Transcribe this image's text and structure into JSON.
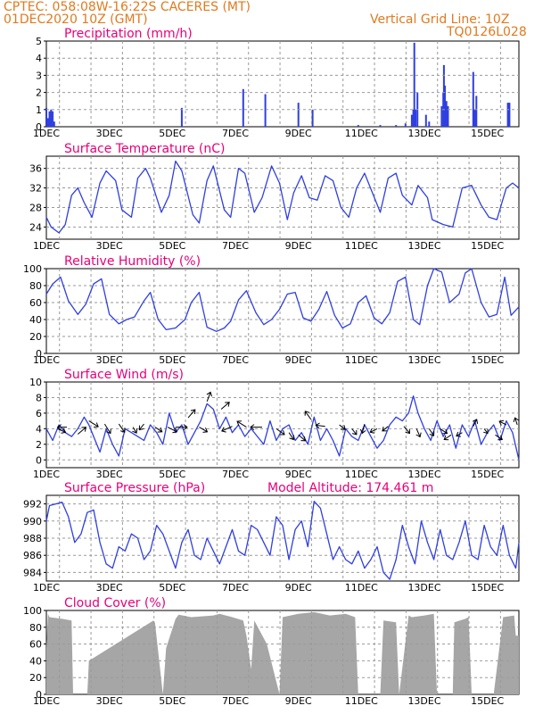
{
  "header": {
    "line1": "CPTEC:   058:08W-16:22S   CACERES (MT)",
    "line2": "01DEC2020 10Z (GMT)",
    "grid_note": "Vertical Grid Line: 10Z",
    "code": "TQ0126L028"
  },
  "colors": {
    "header": "#e07a1f",
    "panel_title": "#e8007a",
    "series": "#2f3fe0",
    "cloud": "#a6a6a6",
    "wind_arrow": "#000000",
    "grid": "#9a9a9a",
    "frame": "#000000"
  },
  "chart_data": [
    {
      "id": "precip",
      "type": "bar",
      "title": "Precipitation (mm/h)",
      "ylim": [
        0,
        5
      ],
      "yticks": [
        "0",
        "1",
        "2",
        "3",
        "4",
        "5"
      ],
      "xlim": [
        1,
        16
      ],
      "xticks": [
        "1DEC",
        "3DEC",
        "5DEC",
        "7DEC",
        "9DEC",
        "11DEC",
        "13DEC",
        "15DEC"
      ],
      "grid": true,
      "series": [
        {
          "x": [
            1.0,
            1.05,
            1.1,
            1.15,
            1.2,
            1.25,
            5.3,
            7.25,
            7.95,
            9.0,
            9.45,
            10.9,
            11.6,
            12.1,
            12.4,
            12.6,
            12.65,
            12.68,
            12.72,
            12.78,
            13.05,
            13.15,
            13.55,
            13.6,
            13.62,
            13.65,
            13.7,
            13.75,
            14.55,
            14.6,
            14.65,
            15.65,
            15.7
          ],
          "values": [
            1.1,
            0.5,
            0.9,
            1.0,
            0.9,
            0.3,
            1.1,
            2.2,
            1.9,
            1.4,
            1.0,
            0.1,
            0.1,
            0.1,
            0.2,
            0.7,
            1.0,
            4.9,
            1.0,
            2.0,
            0.7,
            0.3,
            1.2,
            2.0,
            3.6,
            2.4,
            1.5,
            1.2,
            3.2,
            1.0,
            1.8,
            1.4,
            1.4
          ]
        }
      ]
    },
    {
      "id": "temp",
      "type": "line",
      "title": "Surface Temperature (nC)",
      "ylim": [
        21.5,
        38.5
      ],
      "yticks": [
        "24",
        "28",
        "32",
        "36"
      ],
      "xlim": [
        1,
        16
      ],
      "xticks": [
        "1DEC",
        "3DEC",
        "5DEC",
        "7DEC",
        "9DEC",
        "11DEC",
        "13DEC",
        "15DEC"
      ],
      "grid": true,
      "series": [
        {
          "x": [
            1.0,
            1.15,
            1.4,
            1.6,
            1.8,
            2.0,
            2.2,
            2.45,
            2.7,
            2.9,
            3.2,
            3.4,
            3.7,
            3.9,
            4.15,
            4.3,
            4.65,
            4.9,
            5.1,
            5.3,
            5.65,
            5.85,
            6.1,
            6.3,
            6.65,
            6.85,
            7.1,
            7.3,
            7.6,
            7.85,
            8.15,
            8.4,
            8.65,
            8.85,
            9.1,
            9.35,
            9.6,
            9.85,
            10.1,
            10.35,
            10.6,
            10.85,
            11.1,
            11.35,
            11.6,
            11.85,
            12.1,
            12.3,
            12.6,
            12.8,
            13.1,
            13.25,
            13.6,
            13.9,
            14.2,
            14.5,
            14.8,
            15.05,
            15.3,
            15.6,
            15.8,
            16.0
          ],
          "values": [
            26.0,
            24.0,
            22.8,
            24.5,
            30.5,
            32.0,
            29.0,
            26.0,
            33.0,
            35.5,
            33.5,
            27.5,
            26.0,
            34.0,
            36.0,
            34.0,
            27.0,
            30.5,
            37.5,
            35.5,
            26.5,
            24.8,
            33.5,
            36.5,
            27.5,
            26.0,
            36.0,
            35.0,
            27.0,
            30.0,
            36.5,
            33.0,
            25.5,
            31.0,
            34.5,
            30.0,
            29.5,
            34.5,
            33.5,
            28.0,
            26.0,
            32.0,
            35.0,
            31.0,
            27.0,
            34.0,
            35.0,
            30.5,
            28.5,
            32.5,
            30.0,
            25.5,
            24.5,
            24.0,
            32.0,
            32.5,
            28.5,
            26.0,
            25.5,
            32.0,
            33.0,
            32.0
          ]
        }
      ]
    },
    {
      "id": "rh",
      "type": "line",
      "title": "Relative Humidity (%)",
      "ylim": [
        0,
        100
      ],
      "yticks": [
        "0",
        "20",
        "40",
        "60",
        "80",
        "100"
      ],
      "xlim": [
        1,
        16
      ],
      "xticks": [
        "1DEC",
        "3DEC",
        "5DEC",
        "7DEC",
        "9DEC",
        "11DEC",
        "13DEC",
        "15DEC"
      ],
      "grid": true,
      "series": [
        {
          "x": [
            1.0,
            1.2,
            1.45,
            1.7,
            2.0,
            2.25,
            2.5,
            2.75,
            3.0,
            3.3,
            3.55,
            3.8,
            4.1,
            4.3,
            4.55,
            4.8,
            5.1,
            5.4,
            5.6,
            5.85,
            6.1,
            6.4,
            6.65,
            6.85,
            7.1,
            7.35,
            7.65,
            7.9,
            8.15,
            8.4,
            8.65,
            8.9,
            9.15,
            9.4,
            9.65,
            9.9,
            10.15,
            10.4,
            10.65,
            10.9,
            11.15,
            11.4,
            11.65,
            11.9,
            12.15,
            12.4,
            12.65,
            12.85,
            13.1,
            13.3,
            13.55,
            13.8,
            14.1,
            14.3,
            14.5,
            14.8,
            15.05,
            15.3,
            15.55,
            15.75,
            16.0
          ],
          "values": [
            70,
            82,
            90,
            62,
            46,
            58,
            82,
            88,
            46,
            35,
            40,
            43,
            62,
            72,
            40,
            28,
            30,
            40,
            60,
            72,
            31,
            26,
            30,
            38,
            63,
            74,
            48,
            34,
            40,
            52,
            70,
            72,
            42,
            38,
            52,
            73,
            45,
            30,
            35,
            60,
            68,
            42,
            35,
            48,
            85,
            90,
            40,
            34,
            80,
            100,
            96,
            60,
            70,
            95,
            100,
            60,
            43,
            46,
            90,
            45,
            55
          ]
        }
      ]
    },
    {
      "id": "wind",
      "type": "line",
      "title": "Surface Wind (m/s)",
      "ylim": [
        -1,
        10
      ],
      "yticks": [
        "0",
        "2",
        "4",
        "6",
        "8",
        "10"
      ],
      "xlim": [
        1,
        16
      ],
      "xticks": [
        "1DEC",
        "3DEC",
        "5DEC",
        "7DEC",
        "9DEC",
        "11DEC",
        "13DEC",
        "15DEC"
      ],
      "grid": true,
      "series": [
        {
          "x": [
            1.0,
            1.2,
            1.4,
            1.6,
            1.8,
            2.0,
            2.2,
            2.35,
            2.5,
            2.7,
            2.9,
            3.1,
            3.3,
            3.5,
            3.7,
            3.9,
            4.1,
            4.3,
            4.5,
            4.7,
            4.9,
            5.1,
            5.3,
            5.5,
            5.7,
            5.9,
            6.1,
            6.3,
            6.5,
            6.7,
            6.9,
            7.1,
            7.3,
            7.5,
            7.7,
            7.9,
            8.1,
            8.3,
            8.5,
            8.7,
            8.9,
            9.1,
            9.3,
            9.5,
            9.7,
            9.9,
            10.1,
            10.3,
            10.5,
            10.7,
            10.9,
            11.1,
            11.3,
            11.5,
            11.7,
            11.9,
            12.1,
            12.3,
            12.5,
            12.65,
            12.8,
            13.0,
            13.2,
            13.4,
            13.6,
            13.8,
            14.0,
            14.2,
            14.4,
            14.6,
            14.8,
            15.0,
            15.2,
            15.4,
            15.6,
            15.8,
            16.0
          ],
          "values": [
            4.0,
            2.5,
            4.5,
            3.5,
            3.0,
            4.0,
            5.5,
            4.5,
            3.0,
            1.0,
            4.0,
            2.0,
            0.5,
            4.0,
            3.5,
            3.0,
            2.5,
            4.5,
            3.5,
            2.0,
            6.0,
            3.5,
            4.5,
            2.0,
            3.5,
            5.0,
            7.2,
            6.5,
            4.0,
            5.5,
            3.5,
            4.5,
            3.0,
            4.0,
            3.0,
            2.0,
            5.0,
            2.5,
            4.0,
            4.5,
            2.5,
            3.5,
            2.0,
            5.5,
            2.5,
            4.0,
            2.5,
            0.5,
            4.0,
            3.0,
            2.5,
            4.5,
            3.0,
            1.5,
            2.5,
            4.5,
            5.5,
            5.0,
            6.0,
            8.2,
            6.0,
            4.0,
            2.5,
            5.0,
            3.0,
            4.5,
            1.5,
            4.5,
            3.0,
            5.0,
            2.0,
            3.5,
            4.5,
            2.5,
            5.0,
            3.5,
            0.0
          ]
        }
      ],
      "arrows": {
        "x": [
          1.35,
          1.65,
          2.0,
          2.35,
          2.85,
          3.3,
          3.75,
          4.1,
          4.45,
          4.85,
          5.1,
          5.5,
          5.85,
          6.1,
          6.55,
          6.9,
          7.35,
          7.85,
          8.3,
          8.7,
          9.0,
          9.4,
          9.85,
          10.3,
          10.7,
          11.1,
          11.5,
          11.85,
          12.35,
          12.75,
          13.15,
          13.5,
          13.85,
          14.2,
          14.55,
          14.9,
          15.25,
          15.6,
          15.95
        ],
        "y": [
          4.0,
          4.2,
          3.3,
          5.0,
          4.6,
          4.6,
          4.2,
          4.6,
          4.2,
          4.2,
          4.2,
          5.4,
          4.2,
          7.5,
          6.5,
          4.3,
          4.2,
          4.2,
          4.0,
          3.5,
          3.2,
          5.2,
          4.3,
          4.5,
          4.0,
          4.6,
          4.0,
          4.3,
          4.3,
          4.0,
          4.0,
          4.0,
          3.2,
          3.5,
          4.3,
          4.0,
          3.2,
          4.5,
          4.5
        ],
        "u": [
          0.7,
          -0.8,
          0.7,
          0.8,
          0.5,
          0.5,
          0.3,
          -0.4,
          0.6,
          0.8,
          1.0,
          0.6,
          0.7,
          0.3,
          0.7,
          -0.9,
          -0.8,
          -1.0,
          0.7,
          0.4,
          0.6,
          -0.5,
          -0.8,
          0.5,
          0.4,
          -0.2,
          -0.6,
          -0.5,
          0.5,
          0.3,
          0.4,
          0.6,
          -0.6,
          -0.5,
          0.3,
          0.3,
          0.6,
          -0.6,
          -0.2
        ],
        "v": [
          -0.3,
          0.0,
          0.6,
          -0.5,
          -0.8,
          -0.7,
          -0.5,
          -0.5,
          -0.4,
          -0.4,
          0.0,
          0.7,
          -0.4,
          0.8,
          0.6,
          -0.4,
          0.5,
          0.0,
          -0.5,
          -0.6,
          -0.5,
          0.7,
          0.1,
          -0.4,
          -0.5,
          -0.8,
          -0.3,
          -0.4,
          -0.6,
          -0.7,
          -0.6,
          -0.4,
          -0.4,
          -0.3,
          0.6,
          -0.4,
          -0.4,
          0.3,
          0.6
        ]
      }
    },
    {
      "id": "pres",
      "type": "line",
      "title": "Surface Pressure (hPa)",
      "annotation": "Model Altitude: 174.461  m",
      "ylim": [
        983,
        993
      ],
      "yticks": [
        "984",
        "986",
        "988",
        "990",
        "992"
      ],
      "xlim": [
        1,
        16
      ],
      "xticks": [
        "1DEC",
        "3DEC",
        "5DEC",
        "7DEC",
        "9DEC",
        "11DEC",
        "13DEC",
        "15DEC"
      ],
      "grid": true,
      "series": [
        {
          "x": [
            1.0,
            1.1,
            1.3,
            1.5,
            1.7,
            1.9,
            2.1,
            2.3,
            2.5,
            2.7,
            2.9,
            3.1,
            3.3,
            3.5,
            3.7,
            3.9,
            4.1,
            4.3,
            4.5,
            4.7,
            4.9,
            5.1,
            5.3,
            5.5,
            5.7,
            5.9,
            6.1,
            6.3,
            6.5,
            6.7,
            6.9,
            7.1,
            7.3,
            7.5,
            7.7,
            7.9,
            8.1,
            8.3,
            8.5,
            8.7,
            8.9,
            9.1,
            9.3,
            9.5,
            9.7,
            9.9,
            10.1,
            10.3,
            10.5,
            10.7,
            10.9,
            11.1,
            11.3,
            11.5,
            11.7,
            11.9,
            12.1,
            12.3,
            12.5,
            12.7,
            12.9,
            13.1,
            13.3,
            13.5,
            13.7,
            13.9,
            14.1,
            14.3,
            14.5,
            14.7,
            14.9,
            15.1,
            15.3,
            15.5,
            15.7,
            15.9,
            16.0
          ],
          "values": [
            990.0,
            991.8,
            992.0,
            992.2,
            990.5,
            987.5,
            988.5,
            991.0,
            991.3,
            987.5,
            985.0,
            984.5,
            987.0,
            986.5,
            988.5,
            988.0,
            985.5,
            986.5,
            989.5,
            988.5,
            986.5,
            984.5,
            987.5,
            989.0,
            986.0,
            985.5,
            988.0,
            986.5,
            985.0,
            987.0,
            989.0,
            986.5,
            986.0,
            989.5,
            989.0,
            987.5,
            986.0,
            990.5,
            989.5,
            985.5,
            989.0,
            990.0,
            987.0,
            992.3,
            991.5,
            988.5,
            985.5,
            987.0,
            985.5,
            985.0,
            986.5,
            984.5,
            985.5,
            987.0,
            984.0,
            983.2,
            985.5,
            989.5,
            987.0,
            985.0,
            990.0,
            987.5,
            985.5,
            989.0,
            986.0,
            985.5,
            987.5,
            990.0,
            986.0,
            985.5,
            989.5,
            987.0,
            986.0,
            989.5,
            986.0,
            984.5,
            987.5
          ]
        }
      ]
    },
    {
      "id": "cloud",
      "type": "area",
      "title": "Cloud Cover (%)",
      "ylim": [
        0,
        100
      ],
      "yticks": [
        "0",
        "20",
        "40",
        "60",
        "80",
        "100"
      ],
      "xlim": [
        1,
        16
      ],
      "xticks": [
        "1DEC",
        "3DEC",
        "5DEC",
        "7DEC",
        "9DEC",
        "11DEC",
        "13DEC",
        "15DEC"
      ],
      "grid": true,
      "series": [
        {
          "x": [
            1.0,
            1.05,
            1.1,
            1.5,
            1.8,
            1.85,
            1.9,
            2.3,
            2.35,
            4.4,
            4.45,
            4.7,
            4.8,
            5.1,
            5.2,
            5.6,
            6.3,
            6.5,
            6.9,
            7.25,
            7.35,
            7.5,
            7.6,
            8.0,
            8.4,
            8.5,
            9.0,
            9.5,
            10.0,
            10.5,
            10.8,
            10.9,
            11.6,
            11.7,
            12.1,
            12.2,
            12.5,
            12.6,
            13.0,
            13.3,
            13.4,
            13.5,
            13.9,
            13.95,
            14.3,
            14.4,
            14.45,
            14.5,
            14.9,
            15.2,
            15.5,
            15.85,
            15.9,
            16.0
          ],
          "values": [
            55,
            96,
            92,
            90,
            88,
            0,
            0,
            0,
            40,
            88,
            85,
            0,
            55,
            90,
            95,
            92,
            94,
            96,
            92,
            88,
            70,
            30,
            88,
            60,
            0,
            92,
            96,
            98,
            94,
            96,
            92,
            0,
            0,
            88,
            86,
            0,
            94,
            92,
            94,
            96,
            0,
            0,
            0,
            86,
            90,
            92,
            50,
            0,
            0,
            0,
            92,
            94,
            70,
            70
          ]
        }
      ]
    }
  ]
}
